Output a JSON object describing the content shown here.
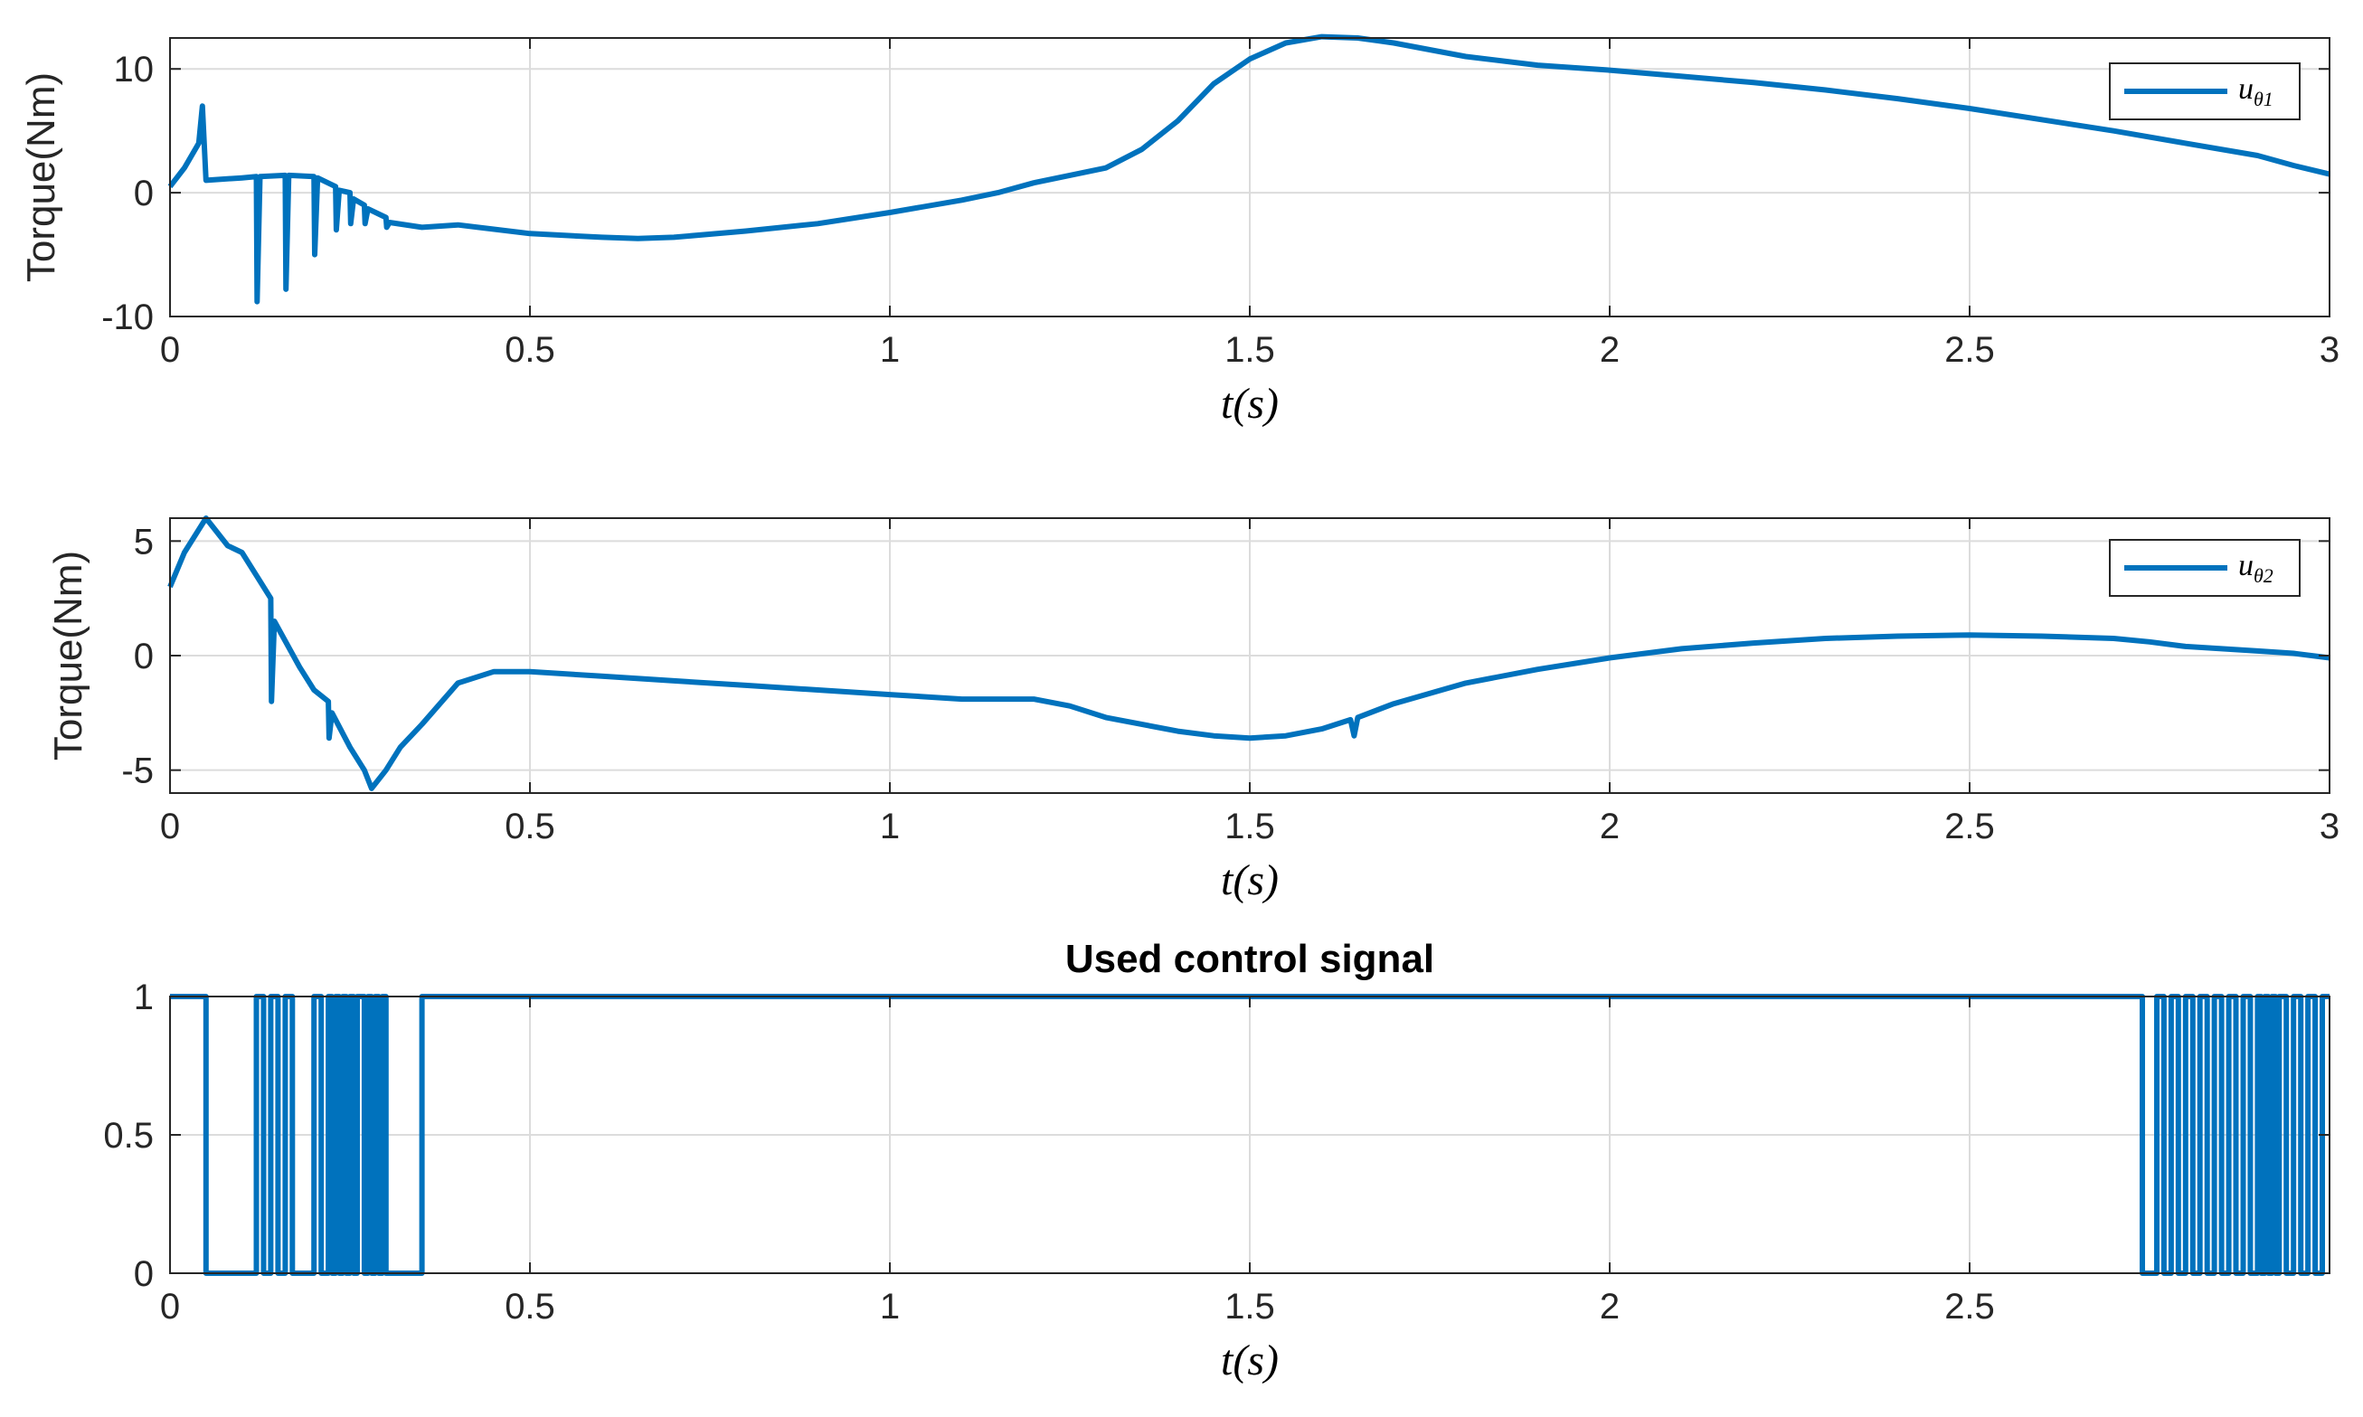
{
  "colors": {
    "series": "#0072bd",
    "grid": "#dcdcdc",
    "axes": "#262626",
    "background": "#ffffff"
  },
  "chart_data": [
    {
      "type": "line",
      "title": "",
      "xlabel": "t(s)",
      "ylabel": "Torque(Nm)",
      "xlim": [
        0,
        3
      ],
      "ylim": [
        -10,
        12.5
      ],
      "xticks": [
        0,
        0.5,
        1,
        1.5,
        2,
        2.5,
        3
      ],
      "xtick_labels": [
        "0",
        "0.5",
        "1",
        "1.5",
        "2",
        "2.5",
        "3"
      ],
      "yticks": [
        -10,
        0,
        10
      ],
      "ytick_labels": [
        "-10",
        "0",
        "10"
      ],
      "grid": true,
      "legend_position": "top-right",
      "series": [
        {
          "name": "u_θ1",
          "legend_main": "u",
          "legend_sub": "θ1",
          "x": [
            0,
            0.02,
            0.04,
            0.045,
            0.05,
            0.1,
            0.12,
            0.121,
            0.125,
            0.16,
            0.161,
            0.165,
            0.2,
            0.201,
            0.205,
            0.23,
            0.231,
            0.235,
            0.25,
            0.251,
            0.255,
            0.27,
            0.271,
            0.275,
            0.3,
            0.301,
            0.305,
            0.35,
            0.4,
            0.5,
            0.6,
            0.65,
            0.7,
            0.8,
            0.9,
            1.0,
            1.1,
            1.15,
            1.2,
            1.25,
            1.3,
            1.35,
            1.4,
            1.45,
            1.5,
            1.55,
            1.6,
            1.65,
            1.7,
            1.8,
            1.9,
            2.0,
            2.1,
            2.2,
            2.3,
            2.4,
            2.5,
            2.6,
            2.7,
            2.8,
            2.9,
            2.95,
            3.0
          ],
          "values": [
            0.5,
            2,
            4,
            7,
            1,
            1.2,
            1.3,
            -8.8,
            1.3,
            1.4,
            -7.8,
            1.4,
            1.3,
            -5,
            1.2,
            0.5,
            -3,
            0.2,
            0,
            -2.5,
            -0.5,
            -1,
            -2.5,
            -1.3,
            -2,
            -2.8,
            -2.4,
            -2.8,
            -2.6,
            -3.3,
            -3.6,
            -3.7,
            -3.6,
            -3.1,
            -2.5,
            -1.6,
            -0.6,
            0,
            0.8,
            1.4,
            2,
            3.5,
            5.8,
            8.8,
            10.8,
            12.1,
            12.6,
            12.5,
            12.1,
            11.0,
            10.3,
            9.9,
            9.4,
            8.9,
            8.3,
            7.6,
            6.8,
            5.9,
            5.0,
            4.0,
            3.0,
            2.2,
            1.5
          ]
        }
      ]
    },
    {
      "type": "line",
      "title": "",
      "xlabel": "t(s)",
      "ylabel": "Torque(Nm)",
      "xlim": [
        0,
        3
      ],
      "ylim": [
        -6,
        6
      ],
      "xticks": [
        0,
        0.5,
        1,
        1.5,
        2,
        2.5,
        3
      ],
      "xtick_labels": [
        "0",
        "0.5",
        "1",
        "1.5",
        "2",
        "2.5",
        "3"
      ],
      "yticks": [
        -5,
        0,
        5
      ],
      "ytick_labels": [
        "-5",
        "0",
        "5"
      ],
      "grid": true,
      "legend_position": "top-right",
      "series": [
        {
          "name": "u_θ2",
          "legend_main": "u",
          "legend_sub": "θ2",
          "x": [
            0,
            0.02,
            0.04,
            0.05,
            0.08,
            0.1,
            0.12,
            0.14,
            0.141,
            0.145,
            0.18,
            0.2,
            0.22,
            0.221,
            0.225,
            0.25,
            0.27,
            0.28,
            0.3,
            0.32,
            0.35,
            0.4,
            0.45,
            0.5,
            0.6,
            0.7,
            0.8,
            0.9,
            1.0,
            1.1,
            1.2,
            1.25,
            1.3,
            1.4,
            1.45,
            1.5,
            1.55,
            1.6,
            1.64,
            1.645,
            1.65,
            1.7,
            1.8,
            1.9,
            2.0,
            2.1,
            2.2,
            2.3,
            2.4,
            2.5,
            2.6,
            2.7,
            2.75,
            2.8,
            2.85,
            2.9,
            2.95,
            3.0
          ],
          "values": [
            3,
            4.5,
            5.5,
            6,
            4.8,
            4.5,
            3.5,
            2.5,
            -2,
            1.5,
            -0.5,
            -1.5,
            -2,
            -3.6,
            -2.5,
            -4,
            -5,
            -5.8,
            -5,
            -4,
            -3,
            -1.2,
            -0.7,
            -0.7,
            -0.9,
            -1.1,
            -1.3,
            -1.5,
            -1.7,
            -1.9,
            -1.9,
            -2.2,
            -2.7,
            -3.3,
            -3.5,
            -3.6,
            -3.5,
            -3.2,
            -2.8,
            -3.5,
            -2.7,
            -2.1,
            -1.2,
            -0.6,
            -0.1,
            0.3,
            0.55,
            0.75,
            0.85,
            0.9,
            0.85,
            0.75,
            0.6,
            0.4,
            0.3,
            0.2,
            0.1,
            -0.1
          ]
        }
      ]
    },
    {
      "type": "line",
      "title": "Used control signal",
      "xlabel": "t(s)",
      "ylabel": "",
      "xlim": [
        0,
        3
      ],
      "ylim": [
        0,
        1
      ],
      "xticks": [
        0,
        0.5,
        1,
        1.5,
        2,
        2.5
      ],
      "xtick_labels": [
        "0",
        "0.5",
        "1",
        "1.5",
        "2",
        "2.5"
      ],
      "yticks": [
        0,
        0.5,
        1
      ],
      "ytick_labels": [
        "0",
        "0.5",
        "1"
      ],
      "grid": true,
      "legend_position": "none",
      "series": [
        {
          "step": true,
          "x": [
            0,
            0.05,
            0.12,
            0.13,
            0.14,
            0.15,
            0.16,
            0.17,
            0.2,
            0.21,
            0.22,
            0.225,
            0.23,
            0.235,
            0.24,
            0.245,
            0.25,
            0.255,
            0.26,
            0.27,
            0.275,
            0.28,
            0.285,
            0.29,
            0.295,
            0.3,
            0.34,
            0.35,
            2.74,
            2.76,
            2.77,
            2.78,
            2.79,
            2.8,
            2.81,
            2.82,
            2.83,
            2.84,
            2.85,
            2.86,
            2.87,
            2.88,
            2.89,
            2.9,
            2.905,
            2.91,
            2.915,
            2.92,
            2.925,
            2.93,
            2.94,
            2.95,
            2.96,
            2.97,
            2.98,
            2.99,
            3.0
          ],
          "values": [
            1,
            0,
            1,
            0,
            1,
            0,
            1,
            0,
            1,
            0,
            1,
            0,
            1,
            0,
            1,
            0,
            1,
            0,
            1,
            0,
            1,
            0,
            1,
            0,
            1,
            0,
            0,
            1,
            0,
            1,
            0,
            1,
            0,
            1,
            0,
            1,
            0,
            1,
            0,
            1,
            0,
            1,
            0,
            1,
            0,
            1,
            0,
            1,
            0,
            1,
            0,
            1,
            0,
            1,
            0,
            1,
            1
          ]
        }
      ]
    }
  ]
}
